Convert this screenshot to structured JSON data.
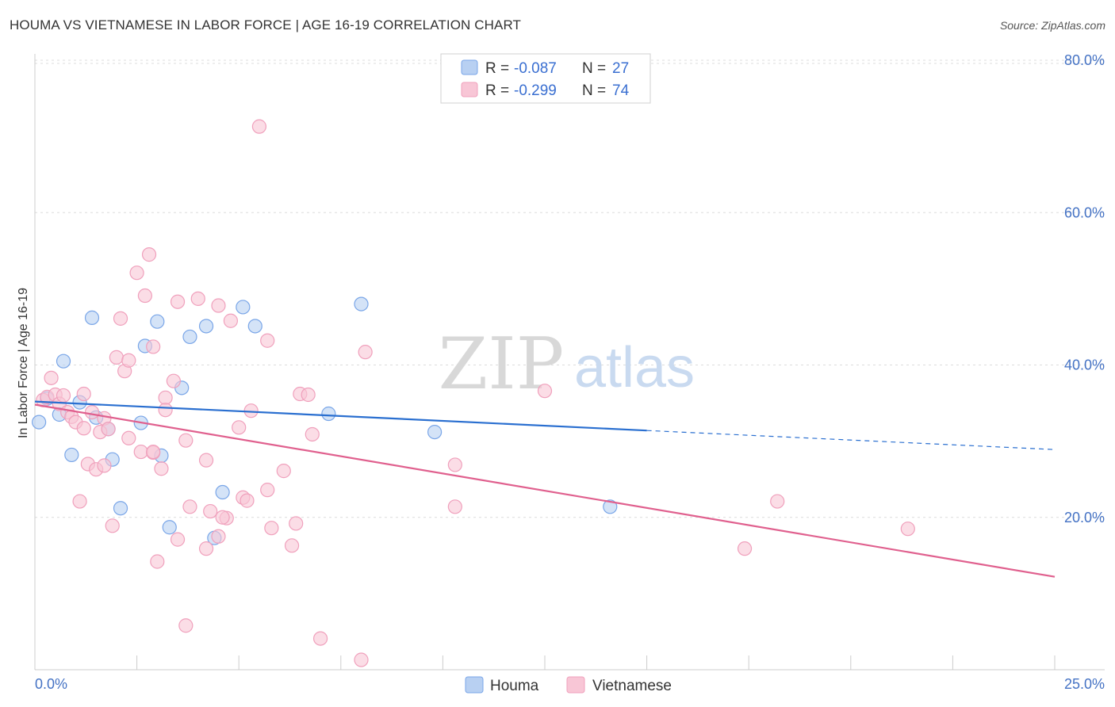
{
  "title": "HOUMA VS VIETNAMESE IN LABOR FORCE | AGE 16-19 CORRELATION CHART",
  "source": "Source: ZipAtlas.com",
  "watermark": {
    "zip": "ZIP",
    "atlas": "atlas"
  },
  "chart_data": {
    "type": "scatter",
    "ylabel": "In Labor Force | Age 16-19",
    "xlim": [
      0,
      25
    ],
    "ylim": [
      0,
      80
    ],
    "x_tick_labels": [
      "0.0%",
      "25.0%"
    ],
    "y_ticks": [
      20,
      40,
      60,
      80
    ],
    "y_tick_labels": [
      "20.0%",
      "40.0%",
      "60.0%",
      "80.0%"
    ],
    "grid": true,
    "legend": [
      {
        "r_label": "R =",
        "r": "-0.087",
        "n_label": "N =",
        "n": "27"
      },
      {
        "r_label": "R =",
        "r": "-0.299",
        "n_label": "N =",
        "n": "74"
      }
    ],
    "series": [
      {
        "name": "Houma",
        "color": "#7aa6e8",
        "fill": "#b8d0f2",
        "line_color": "#2a6fd0",
        "trend": {
          "x0": 0.0,
          "y0": 35.2,
          "x1": 15.0,
          "y1": 31.4,
          "dash_to_x": 25.0,
          "dash_to_y": 28.9
        },
        "points": [
          [
            0.1,
            32.5
          ],
          [
            0.3,
            35.6
          ],
          [
            0.6,
            33.5
          ],
          [
            0.7,
            40.5
          ],
          [
            0.9,
            28.2
          ],
          [
            1.1,
            35.1
          ],
          [
            1.4,
            46.2
          ],
          [
            1.5,
            33.1
          ],
          [
            1.8,
            31.6
          ],
          [
            1.9,
            27.6
          ],
          [
            2.1,
            21.2
          ],
          [
            2.6,
            32.4
          ],
          [
            2.7,
            42.5
          ],
          [
            3.0,
            45.7
          ],
          [
            3.1,
            28.1
          ],
          [
            3.3,
            18.7
          ],
          [
            3.6,
            37.0
          ],
          [
            3.8,
            43.7
          ],
          [
            4.2,
            45.1
          ],
          [
            4.4,
            17.3
          ],
          [
            4.6,
            23.3
          ],
          [
            5.1,
            47.6
          ],
          [
            5.4,
            45.1
          ],
          [
            7.2,
            33.6
          ],
          [
            8.0,
            48.0
          ],
          [
            9.8,
            31.2
          ],
          [
            14.1,
            21.4
          ]
        ]
      },
      {
        "name": "Vietnamese",
        "color": "#f0a0bc",
        "fill": "#f8c6d6",
        "line_color": "#e0608e",
        "trend": {
          "x0": 0.0,
          "y0": 34.8,
          "x1": 25.0,
          "y1": 12.2
        },
        "points": [
          [
            0.2,
            35.4
          ],
          [
            0.3,
            35.8
          ],
          [
            0.4,
            38.3
          ],
          [
            0.5,
            36.1
          ],
          [
            0.6,
            34.9
          ],
          [
            0.8,
            33.8
          ],
          [
            0.9,
            33.2
          ],
          [
            1.0,
            32.5
          ],
          [
            1.1,
            22.1
          ],
          [
            1.2,
            31.7
          ],
          [
            1.2,
            36.2
          ],
          [
            1.3,
            27.0
          ],
          [
            1.4,
            33.8
          ],
          [
            1.5,
            26.3
          ],
          [
            1.6,
            31.2
          ],
          [
            1.7,
            26.8
          ],
          [
            1.7,
            33.0
          ],
          [
            1.8,
            31.6
          ],
          [
            1.9,
            18.9
          ],
          [
            2.0,
            41.0
          ],
          [
            2.1,
            46.1
          ],
          [
            2.2,
            39.2
          ],
          [
            2.3,
            40.6
          ],
          [
            2.3,
            30.4
          ],
          [
            2.5,
            52.1
          ],
          [
            2.6,
            28.6
          ],
          [
            2.7,
            49.1
          ],
          [
            2.8,
            54.5
          ],
          [
            2.9,
            42.4
          ],
          [
            2.9,
            28.5
          ],
          [
            3.0,
            14.2
          ],
          [
            3.1,
            26.4
          ],
          [
            3.2,
            35.7
          ],
          [
            3.2,
            34.1
          ],
          [
            3.4,
            37.9
          ],
          [
            3.5,
            17.1
          ],
          [
            3.5,
            48.3
          ],
          [
            3.7,
            30.1
          ],
          [
            3.8,
            21.4
          ],
          [
            3.7,
            5.8
          ],
          [
            4.0,
            48.7
          ],
          [
            4.2,
            27.5
          ],
          [
            4.2,
            15.9
          ],
          [
            4.3,
            20.8
          ],
          [
            4.5,
            47.8
          ],
          [
            4.5,
            17.5
          ],
          [
            4.7,
            19.9
          ],
          [
            4.8,
            45.8
          ],
          [
            5.0,
            31.8
          ],
          [
            5.1,
            22.6
          ],
          [
            5.2,
            22.2
          ],
          [
            5.3,
            34.0
          ],
          [
            5.5,
            71.3
          ],
          [
            5.7,
            43.2
          ],
          [
            5.7,
            23.6
          ],
          [
            5.8,
            18.6
          ],
          [
            6.1,
            26.1
          ],
          [
            6.3,
            16.3
          ],
          [
            6.5,
            36.2
          ],
          [
            6.4,
            19.2
          ],
          [
            6.7,
            36.1
          ],
          [
            6.8,
            30.9
          ],
          [
            7.0,
            4.1
          ],
          [
            8.1,
            41.7
          ],
          [
            8.0,
            1.3
          ],
          [
            10.3,
            26.9
          ],
          [
            10.3,
            21.4
          ],
          [
            12.5,
            36.6
          ],
          [
            17.4,
            15.9
          ],
          [
            18.2,
            22.1
          ],
          [
            21.4,
            18.5
          ],
          [
            0.7,
            36.0
          ],
          [
            2.9,
            28.6
          ],
          [
            4.6,
            20.0
          ]
        ]
      }
    ]
  },
  "bottom_legend": [
    {
      "label": "Houma"
    },
    {
      "label": "Vietnamese"
    }
  ]
}
